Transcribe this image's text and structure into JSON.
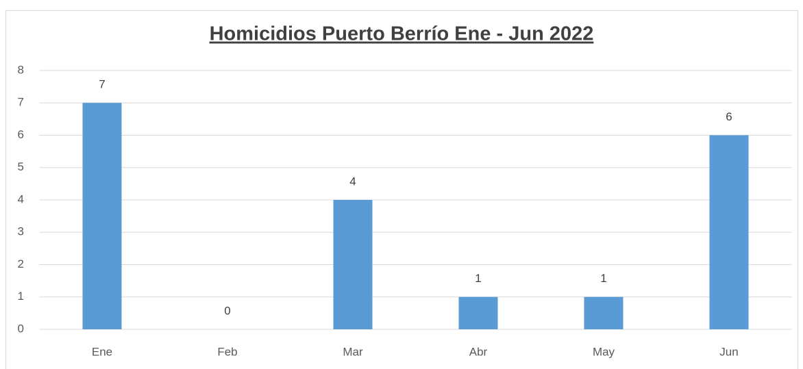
{
  "chart_data": {
    "type": "bar",
    "title": "Homicidios Puerto Berrío Ene - Jun 2022",
    "categories": [
      "Ene",
      "Feb",
      "Mar",
      "Abr",
      "May",
      "Jun"
    ],
    "values": [
      7,
      0,
      4,
      1,
      1,
      6
    ],
    "color": "#5b9bd5",
    "ylim": [
      0,
      8
    ],
    "yticks": [
      0,
      1,
      2,
      3,
      4,
      5,
      6,
      7,
      8
    ],
    "grid": true
  }
}
